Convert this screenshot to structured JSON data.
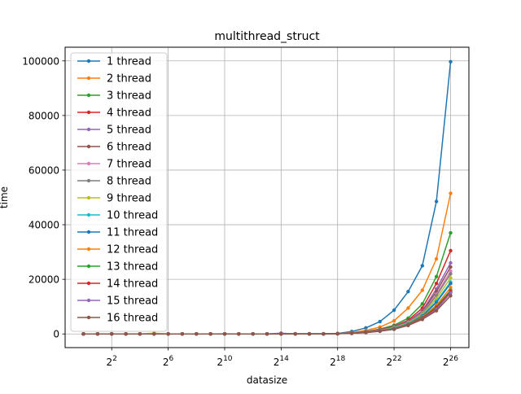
{
  "chart_data": {
    "type": "line",
    "title": "multithread_struct",
    "xlabel": "datasize",
    "ylabel": "time",
    "x_scale": "log2",
    "x_exponents": [
      0,
      1,
      2,
      3,
      4,
      5,
      6,
      7,
      8,
      9,
      10,
      11,
      12,
      13,
      14,
      15,
      16,
      17,
      18,
      19,
      20,
      21,
      22,
      23,
      24,
      25,
      26
    ],
    "x_ticks": [
      {
        "base": "2",
        "exp": "2",
        "value": 2
      },
      {
        "base": "2",
        "exp": "6",
        "value": 6
      },
      {
        "base": "2",
        "exp": "10",
        "value": 10
      },
      {
        "base": "2",
        "exp": "14",
        "value": 14
      },
      {
        "base": "2",
        "exp": "18",
        "value": 18
      },
      {
        "base": "2",
        "exp": "22",
        "value": 22
      },
      {
        "base": "2",
        "exp": "26",
        "value": 26
      }
    ],
    "y_ticks": [
      {
        "label": "0",
        "value": 0
      },
      {
        "label": "20000",
        "value": 20000
      },
      {
        "label": "40000",
        "value": 40000
      },
      {
        "label": "60000",
        "value": 60000
      },
      {
        "label": "80000",
        "value": 80000
      },
      {
        "label": "100000",
        "value": 100000
      }
    ],
    "xlim": [
      -1.3,
      27.3
    ],
    "ylim": [
      -5000,
      105000
    ],
    "grid": true,
    "legend_position": "top-left",
    "series": [
      {
        "name": "1 thread",
        "color": "#1f77b4",
        "values": [
          0,
          0,
          0,
          0,
          0,
          0,
          0,
          0,
          0,
          0,
          50,
          0,
          0,
          0,
          100,
          100,
          100,
          100,
          200,
          900,
          2200,
          4500,
          8700,
          15500,
          25000,
          48500,
          99700
        ]
      },
      {
        "name": "2 thread",
        "color": "#ff7f0e",
        "values": [
          0,
          0,
          0,
          0,
          0,
          0,
          0,
          0,
          0,
          0,
          0,
          0,
          0,
          0,
          0,
          0,
          0,
          0,
          150,
          500,
          1300,
          2500,
          4800,
          9500,
          16000,
          27500,
          51500
        ]
      },
      {
        "name": "3 thread",
        "color": "#2ca02c",
        "values": [
          0,
          0,
          0,
          0,
          0,
          0,
          0,
          0,
          0,
          0,
          0,
          0,
          0,
          0,
          0,
          0,
          0,
          0,
          100,
          350,
          900,
          1800,
          3200,
          5800,
          11000,
          21000,
          37000
        ]
      },
      {
        "name": "4 thread",
        "color": "#d62728",
        "values": [
          0,
          0,
          0,
          0,
          0,
          0,
          0,
          0,
          0,
          0,
          0,
          0,
          0,
          0,
          0,
          0,
          0,
          0,
          100,
          300,
          800,
          1600,
          2800,
          5000,
          9500,
          18500,
          30500
        ]
      },
      {
        "name": "5 thread",
        "color": "#9467bd",
        "values": [
          0,
          0,
          0,
          0,
          0,
          0,
          0,
          0,
          0,
          0,
          0,
          0,
          0,
          0,
          300,
          0,
          0,
          0,
          100,
          300,
          700,
          1500,
          2600,
          4600,
          8500,
          16500,
          26000
        ]
      },
      {
        "name": "6 thread",
        "color": "#8c564b",
        "values": [
          0,
          0,
          0,
          0,
          0,
          0,
          0,
          0,
          0,
          0,
          0,
          0,
          0,
          0,
          0,
          0,
          0,
          0,
          100,
          250,
          700,
          1400,
          2500,
          4400,
          8200,
          15500,
          24500
        ]
      },
      {
        "name": "7 thread",
        "color": "#e377c2",
        "values": [
          0,
          0,
          0,
          0,
          0,
          0,
          0,
          0,
          0,
          0,
          0,
          0,
          0,
          0,
          0,
          0,
          0,
          0,
          100,
          250,
          650,
          1300,
          2400,
          4200,
          7800,
          14500,
          23000
        ]
      },
      {
        "name": "8 thread",
        "color": "#7f7f7f",
        "values": [
          0,
          0,
          0,
          0,
          0,
          0,
          0,
          0,
          0,
          0,
          0,
          0,
          0,
          0,
          0,
          0,
          0,
          0,
          100,
          250,
          650,
          1300,
          2300,
          4100,
          7500,
          14000,
          22000
        ]
      },
      {
        "name": "9 thread",
        "color": "#bcbd22",
        "values": [
          0,
          0,
          0,
          0,
          0,
          300,
          0,
          0,
          0,
          0,
          0,
          0,
          0,
          0,
          0,
          0,
          0,
          0,
          100,
          250,
          600,
          1250,
          2200,
          4000,
          7200,
          13000,
          20500
        ]
      },
      {
        "name": "10 thread",
        "color": "#17becf",
        "values": [
          0,
          0,
          0,
          0,
          0,
          0,
          0,
          0,
          0,
          0,
          0,
          0,
          0,
          0,
          0,
          0,
          0,
          0,
          100,
          250,
          600,
          1200,
          2100,
          3800,
          6800,
          12000,
          19000
        ]
      },
      {
        "name": "11 thread",
        "color": "#1f77b4",
        "values": [
          0,
          0,
          0,
          0,
          0,
          0,
          0,
          0,
          0,
          0,
          0,
          0,
          0,
          0,
          0,
          0,
          0,
          0,
          100,
          250,
          600,
          1200,
          2000,
          3700,
          6500,
          11500,
          18500
        ]
      },
      {
        "name": "12 thread",
        "color": "#ff7f0e",
        "values": [
          0,
          0,
          0,
          0,
          0,
          0,
          0,
          0,
          0,
          0,
          0,
          0,
          0,
          0,
          0,
          0,
          0,
          0,
          100,
          250,
          550,
          1150,
          1900,
          3500,
          6200,
          10500,
          17000
        ]
      },
      {
        "name": "13 thread",
        "color": "#2ca02c",
        "values": [
          0,
          0,
          0,
          0,
          0,
          0,
          0,
          0,
          0,
          0,
          0,
          0,
          0,
          0,
          0,
          0,
          0,
          0,
          100,
          250,
          550,
          1100,
          1900,
          3400,
          6000,
          10000,
          16000
        ]
      },
      {
        "name": "14 thread",
        "color": "#d62728",
        "values": [
          0,
          0,
          0,
          0,
          0,
          0,
          0,
          0,
          0,
          0,
          0,
          0,
          0,
          0,
          0,
          0,
          0,
          0,
          100,
          250,
          550,
          1100,
          1800,
          3300,
          5800,
          9500,
          15500
        ]
      },
      {
        "name": "15 thread",
        "color": "#9467bd",
        "values": [
          0,
          0,
          0,
          0,
          0,
          0,
          0,
          0,
          0,
          0,
          0,
          0,
          0,
          0,
          0,
          0,
          0,
          0,
          100,
          250,
          500,
          1050,
          1800,
          3200,
          5500,
          9000,
          15000
        ]
      },
      {
        "name": "16 thread",
        "color": "#8c564b",
        "values": [
          0,
          0,
          0,
          0,
          0,
          0,
          0,
          0,
          0,
          0,
          0,
          0,
          0,
          0,
          0,
          0,
          0,
          0,
          100,
          250,
          500,
          1000,
          1700,
          3100,
          5300,
          8500,
          14000
        ]
      }
    ]
  }
}
